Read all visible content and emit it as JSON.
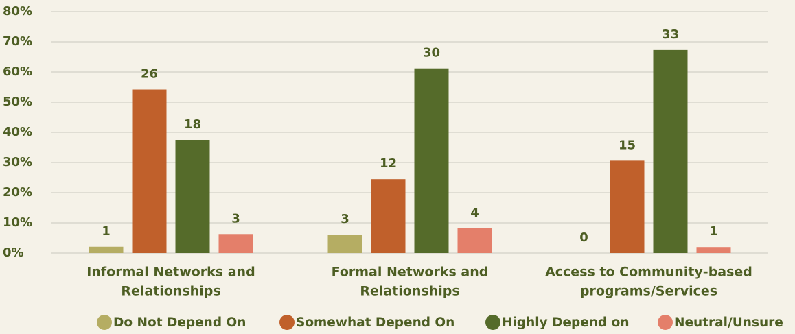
{
  "chart_data": {
    "type": "bar",
    "categories": [
      [
        "Informal Networks and",
        "Relationships"
      ],
      [
        "Formal Networks and",
        "Relationships"
      ],
      [
        "Access to Community-based",
        "programs/Services"
      ]
    ],
    "series": [
      {
        "name": "Do Not Depend On",
        "color": "#b5ad63",
        "values": [
          2.1,
          6.1,
          0
        ],
        "counts": [
          1,
          3,
          0
        ]
      },
      {
        "name": "Somewhat Depend On",
        "color": "#c0602b",
        "values": [
          54.2,
          24.5,
          30.6
        ],
        "counts": [
          26,
          12,
          15
        ]
      },
      {
        "name": "Highly Depend on",
        "color": "#556b2a",
        "values": [
          37.5,
          61.2,
          67.3
        ],
        "counts": [
          18,
          30,
          33
        ]
      },
      {
        "name": "Neutral/Unsure",
        "color": "#e47f6a",
        "values": [
          6.3,
          8.2,
          2.0
        ],
        "counts": [
          3,
          4,
          1
        ]
      }
    ],
    "ylim": [
      0,
      80
    ],
    "yticks": [
      {
        "value": 0,
        "label": "0%"
      },
      {
        "value": 10,
        "label": "10%"
      },
      {
        "value": 20,
        "label": "20%"
      },
      {
        "value": 30,
        "label": "30%"
      },
      {
        "value": 40,
        "label": "40%"
      },
      {
        "value": 50,
        "label": "50%"
      },
      {
        "value": 60,
        "label": "60%"
      },
      {
        "value": 70,
        "label": "70%"
      },
      {
        "value": 80,
        "label": "80%"
      }
    ],
    "grid": true,
    "legend": "bottom"
  }
}
